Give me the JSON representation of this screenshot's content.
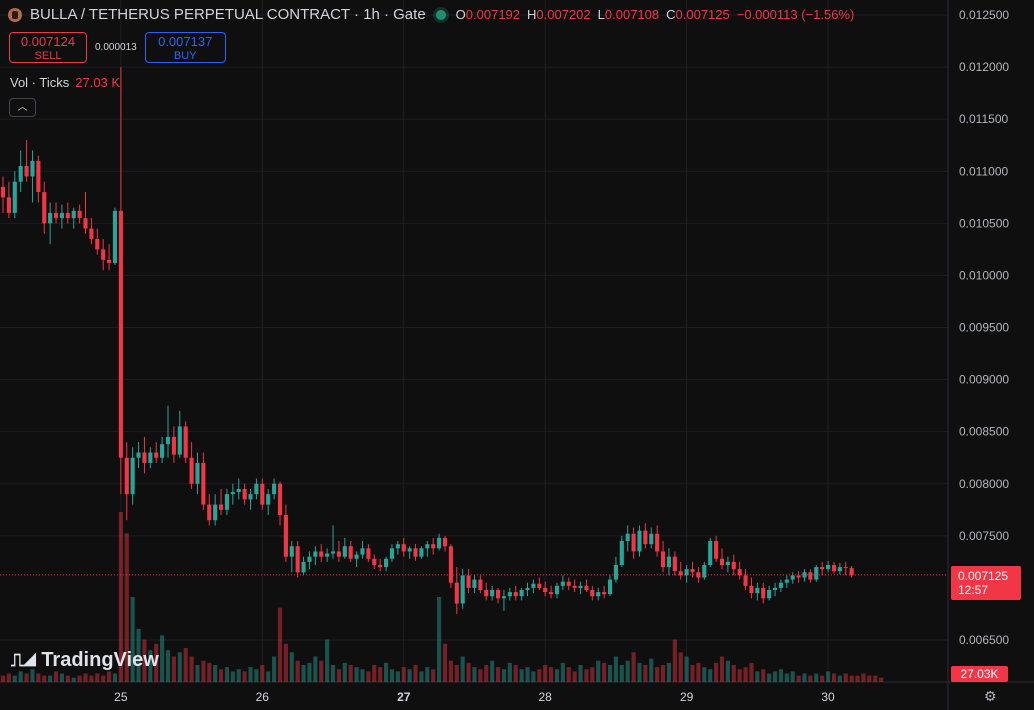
{
  "header": {
    "title": "BULLA / TETHERUS PERPETUAL CONTRACT · 1h · Gate",
    "ohlc": [
      {
        "k": "O",
        "v": "0.007192"
      },
      {
        "k": "H",
        "v": "0.007202"
      },
      {
        "k": "L",
        "v": "0.007108"
      },
      {
        "k": "C",
        "v": "0.007125"
      }
    ],
    "change": "−0.000113 (−1.56%)"
  },
  "trade": {
    "sell_price": "0.007124",
    "sell_label": "SELL",
    "spread": "0.000013",
    "buy_price": "0.007137",
    "buy_label": "BUY"
  },
  "volume": {
    "label": "Vol · Ticks",
    "value": "27.03 K"
  },
  "logo": {
    "text": "TradingView",
    "icon": "tradingview-logo-icon"
  },
  "last_price": {
    "price": "0.007125",
    "countdown": "12:57"
  },
  "last_volume": "27.03K",
  "colors": {
    "up": "#26a69a",
    "down": "#f23645",
    "background": "#0f0f0f"
  },
  "chart_data": {
    "type": "candlestick",
    "interval": "1h",
    "y_axis_side": "right",
    "y_ticks": [
      "0.012500",
      "0.012000",
      "0.011500",
      "0.011000",
      "0.010500",
      "0.010000",
      "0.009500",
      "0.009000",
      "0.008500",
      "0.008000",
      "0.007500",
      "0.006500"
    ],
    "ylim": [
      0.0062,
      0.0126
    ],
    "x_ticks": [
      {
        "label": "25",
        "t": 20,
        "bold": false
      },
      {
        "label": "26",
        "t": 44,
        "bold": false
      },
      {
        "label": "27",
        "t": 68,
        "bold": true
      },
      {
        "label": "28",
        "t": 92,
        "bold": false
      },
      {
        "label": "29",
        "t": 116,
        "bold": false
      },
      {
        "label": "30",
        "t": 140,
        "bold": false
      }
    ],
    "t_range": [
      0,
      150
    ],
    "candles": [
      [
        0.01085,
        0.01095,
        0.0106,
        0.01075
      ],
      [
        0.01075,
        0.0109,
        0.01055,
        0.0106
      ],
      [
        0.0106,
        0.011,
        0.01055,
        0.0109
      ],
      [
        0.0109,
        0.0112,
        0.0108,
        0.01105
      ],
      [
        0.01105,
        0.0113,
        0.0109,
        0.01095
      ],
      [
        0.01095,
        0.0112,
        0.0107,
        0.0111
      ],
      [
        0.0111,
        0.01115,
        0.0107,
        0.0108
      ],
      [
        0.0108,
        0.0109,
        0.0104,
        0.0105
      ],
      [
        0.0105,
        0.0107,
        0.0103,
        0.0106
      ],
      [
        0.0106,
        0.0107,
        0.0105,
        0.01055
      ],
      [
        0.01055,
        0.01068,
        0.01045,
        0.0106
      ],
      [
        0.0106,
        0.0107,
        0.0105,
        0.01055
      ],
      [
        0.01055,
        0.01065,
        0.01045,
        0.01062
      ],
      [
        0.01062,
        0.01068,
        0.0105,
        0.01055
      ],
      [
        0.01055,
        0.0108,
        0.0104,
        0.01045
      ],
      [
        0.01045,
        0.01055,
        0.0103,
        0.01035
      ],
      [
        0.01035,
        0.01045,
        0.0102,
        0.01025
      ],
      [
        0.01025,
        0.01035,
        0.01005,
        0.01015
      ],
      [
        0.01015,
        0.0103,
        0.01005,
        0.01012
      ],
      [
        0.01012,
        0.01065,
        0.0101,
        0.01062
      ],
      [
        0.01062,
        0.012,
        0.0079,
        0.00825
      ],
      [
        0.00825,
        0.0084,
        0.00765,
        0.0079
      ],
      [
        0.0079,
        0.00835,
        0.0078,
        0.00825
      ],
      [
        0.00825,
        0.0084,
        0.00815,
        0.0083
      ],
      [
        0.0083,
        0.00845,
        0.0081,
        0.0082
      ],
      [
        0.0082,
        0.00835,
        0.00815,
        0.0083
      ],
      [
        0.0083,
        0.0084,
        0.0082,
        0.00825
      ],
      [
        0.00825,
        0.00845,
        0.0082,
        0.00838
      ],
      [
        0.00838,
        0.00875,
        0.00825,
        0.00845
      ],
      [
        0.00845,
        0.00855,
        0.0082,
        0.00828
      ],
      [
        0.00828,
        0.0087,
        0.00825,
        0.00855
      ],
      [
        0.00855,
        0.0086,
        0.0082,
        0.00825
      ],
      [
        0.00825,
        0.0084,
        0.00795,
        0.008
      ],
      [
        0.008,
        0.0083,
        0.0079,
        0.0082
      ],
      [
        0.0082,
        0.0083,
        0.00775,
        0.0078
      ],
      [
        0.0078,
        0.0079,
        0.0076,
        0.00765
      ],
      [
        0.00765,
        0.0079,
        0.0076,
        0.0078
      ],
      [
        0.0078,
        0.00795,
        0.0077,
        0.00775
      ],
      [
        0.00775,
        0.00795,
        0.0077,
        0.0079
      ],
      [
        0.0079,
        0.008,
        0.0078,
        0.00792
      ],
      [
        0.00792,
        0.00805,
        0.00785,
        0.00795
      ],
      [
        0.00795,
        0.008,
        0.0078,
        0.00785
      ],
      [
        0.00785,
        0.00795,
        0.00775,
        0.0079
      ],
      [
        0.0079,
        0.00805,
        0.00785,
        0.008
      ],
      [
        0.008,
        0.00805,
        0.00775,
        0.0078
      ],
      [
        0.0078,
        0.00795,
        0.0077,
        0.0079
      ],
      [
        0.0079,
        0.00805,
        0.00785,
        0.008
      ],
      [
        0.008,
        0.00802,
        0.0076,
        0.0077
      ],
      [
        0.0077,
        0.0078,
        0.00725,
        0.0073
      ],
      [
        0.0073,
        0.00745,
        0.00715,
        0.0074
      ],
      [
        0.0074,
        0.00745,
        0.0071,
        0.00715
      ],
      [
        0.00715,
        0.0073,
        0.00712,
        0.00725
      ],
      [
        0.00725,
        0.00735,
        0.00718,
        0.0073
      ],
      [
        0.0073,
        0.0074,
        0.00722,
        0.00735
      ],
      [
        0.00735,
        0.00742,
        0.00725,
        0.0073
      ],
      [
        0.0073,
        0.00738,
        0.00725,
        0.00733
      ],
      [
        0.00733,
        0.0076,
        0.00728,
        0.00735
      ],
      [
        0.00735,
        0.00745,
        0.00725,
        0.0073
      ],
      [
        0.0073,
        0.00748,
        0.00728,
        0.0074
      ],
      [
        0.0074,
        0.00745,
        0.00725,
        0.00728
      ],
      [
        0.00728,
        0.00735,
        0.0072,
        0.00732
      ],
      [
        0.00732,
        0.00745,
        0.00728,
        0.00738
      ],
      [
        0.00738,
        0.00742,
        0.00725,
        0.00728
      ],
      [
        0.00728,
        0.00732,
        0.00718,
        0.00722
      ],
      [
        0.00722,
        0.00728,
        0.00716,
        0.0072
      ],
      [
        0.0072,
        0.0073,
        0.00716,
        0.00728
      ],
      [
        0.00728,
        0.00742,
        0.00725,
        0.00738
      ],
      [
        0.00738,
        0.00745,
        0.00732,
        0.00742
      ],
      [
        0.00742,
        0.00748,
        0.0073,
        0.00735
      ],
      [
        0.00735,
        0.0074,
        0.00728,
        0.00738
      ],
      [
        0.00738,
        0.00742,
        0.00726,
        0.0073
      ],
      [
        0.0073,
        0.0074,
        0.00728,
        0.00738
      ],
      [
        0.00738,
        0.00745,
        0.0073,
        0.00742
      ],
      [
        0.00742,
        0.00748,
        0.00732,
        0.00738
      ],
      [
        0.00738,
        0.00752,
        0.00736,
        0.00748
      ],
      [
        0.00748,
        0.0075,
        0.00735,
        0.0074
      ],
      [
        0.0074,
        0.00742,
        0.007,
        0.00705
      ],
      [
        0.00705,
        0.0072,
        0.00675,
        0.00685
      ],
      [
        0.00685,
        0.00718,
        0.0068,
        0.00712
      ],
      [
        0.00712,
        0.00718,
        0.00695,
        0.007
      ],
      [
        0.007,
        0.00712,
        0.00695,
        0.00708
      ],
      [
        0.00708,
        0.00712,
        0.00695,
        0.00698
      ],
      [
        0.00698,
        0.00705,
        0.00688,
        0.00692
      ],
      [
        0.00692,
        0.00702,
        0.00688,
        0.00698
      ],
      [
        0.00698,
        0.007,
        0.00685,
        0.0069
      ],
      [
        0.0069,
        0.00698,
        0.00678,
        0.00692
      ],
      [
        0.00692,
        0.007,
        0.00688,
        0.00696
      ],
      [
        0.00696,
        0.00702,
        0.00688,
        0.00692
      ],
      [
        0.00692,
        0.007,
        0.00688,
        0.00698
      ],
      [
        0.00698,
        0.00705,
        0.00692,
        0.007
      ],
      [
        0.007,
        0.00708,
        0.00695,
        0.00704
      ],
      [
        0.00704,
        0.0071,
        0.00698,
        0.007
      ],
      [
        0.007,
        0.00706,
        0.00692,
        0.00696
      ],
      [
        0.00696,
        0.00702,
        0.0069,
        0.00694
      ],
      [
        0.00694,
        0.00705,
        0.0069,
        0.00702
      ],
      [
        0.00702,
        0.00712,
        0.00698,
        0.00706
      ],
      [
        0.00706,
        0.0071,
        0.00698,
        0.00702
      ],
      [
        0.00702,
        0.00708,
        0.00696,
        0.007
      ],
      [
        0.007,
        0.00706,
        0.00694,
        0.00702
      ],
      [
        0.00702,
        0.00708,
        0.00696,
        0.00698
      ],
      [
        0.00698,
        0.00702,
        0.00688,
        0.00692
      ],
      [
        0.00692,
        0.007,
        0.00688,
        0.00696
      ],
      [
        0.00696,
        0.00702,
        0.0069,
        0.00694
      ],
      [
        0.00694,
        0.00712,
        0.00692,
        0.00708
      ],
      [
        0.00708,
        0.0073,
        0.00705,
        0.00722
      ],
      [
        0.00722,
        0.0075,
        0.0072,
        0.00745
      ],
      [
        0.00745,
        0.0076,
        0.00735,
        0.00752
      ],
      [
        0.00752,
        0.00758,
        0.00728,
        0.00735
      ],
      [
        0.00735,
        0.0076,
        0.0073,
        0.00755
      ],
      [
        0.00755,
        0.00762,
        0.00738,
        0.00742
      ],
      [
        0.00742,
        0.00758,
        0.00738,
        0.00752
      ],
      [
        0.00752,
        0.0076,
        0.0073,
        0.00735
      ],
      [
        0.00735,
        0.00745,
        0.00715,
        0.0072
      ],
      [
        0.0072,
        0.00738,
        0.00712,
        0.0073
      ],
      [
        0.0073,
        0.00735,
        0.00712,
        0.00716
      ],
      [
        0.00716,
        0.00725,
        0.00708,
        0.00712
      ],
      [
        0.00712,
        0.00722,
        0.00705,
        0.00718
      ],
      [
        0.00718,
        0.00725,
        0.0071,
        0.00715
      ],
      [
        0.00715,
        0.0072,
        0.00705,
        0.0071
      ],
      [
        0.0071,
        0.00725,
        0.00708,
        0.00722
      ],
      [
        0.00722,
        0.00748,
        0.0072,
        0.00745
      ],
      [
        0.00745,
        0.0075,
        0.00725,
        0.00728
      ],
      [
        0.00728,
        0.00738,
        0.00718,
        0.00722
      ],
      [
        0.00722,
        0.0073,
        0.00715,
        0.00725
      ],
      [
        0.00725,
        0.00732,
        0.00712,
        0.00718
      ],
      [
        0.00718,
        0.00725,
        0.00708,
        0.00712
      ],
      [
        0.00712,
        0.00718,
        0.00698,
        0.00702
      ],
      [
        0.00702,
        0.0071,
        0.0069,
        0.00695
      ],
      [
        0.00695,
        0.00705,
        0.00688,
        0.007
      ],
      [
        0.007,
        0.00705,
        0.00685,
        0.0069
      ],
      [
        0.0069,
        0.00702,
        0.00688,
        0.00698
      ],
      [
        0.00698,
        0.00705,
        0.00692,
        0.007
      ],
      [
        0.007,
        0.00708,
        0.00696,
        0.00705
      ],
      [
        0.00705,
        0.00712,
        0.007,
        0.00708
      ],
      [
        0.00708,
        0.00715,
        0.00704,
        0.00712
      ],
      [
        0.00712,
        0.00716,
        0.00705,
        0.0071
      ],
      [
        0.0071,
        0.00718,
        0.00706,
        0.00715
      ],
      [
        0.00715,
        0.00718,
        0.00705,
        0.00708
      ],
      [
        0.00708,
        0.00722,
        0.00706,
        0.0072
      ],
      [
        0.0072,
        0.00725,
        0.00712,
        0.00718
      ],
      [
        0.00718,
        0.00726,
        0.00715,
        0.00722
      ],
      [
        0.00722,
        0.00725,
        0.00714,
        0.00716
      ],
      [
        0.00716,
        0.00724,
        0.00713,
        0.0072
      ],
      [
        0.0072,
        0.00725,
        0.00712,
        0.00719
      ],
      [
        0.00719,
        0.00721,
        0.0071,
        0.00712
      ]
    ],
    "volumes": [
      3,
      4,
      3,
      5,
      4,
      6,
      4,
      3,
      3,
      5,
      4,
      3,
      2,
      3,
      4,
      3,
      4,
      3,
      5,
      4,
      80,
      70,
      40,
      25,
      20,
      15,
      18,
      22,
      15,
      12,
      14,
      16,
      12,
      8,
      10,
      9,
      8,
      6,
      7,
      5,
      6,
      5,
      7,
      6,
      8,
      5,
      12,
      35,
      18,
      14,
      10,
      8,
      9,
      12,
      10,
      20,
      8,
      6,
      9,
      8,
      7,
      6,
      5,
      8,
      7,
      9,
      6,
      5,
      7,
      6,
      8,
      5,
      7,
      6,
      40,
      18,
      10,
      8,
      12,
      9,
      7,
      6,
      8,
      10,
      7,
      6,
      9,
      8,
      6,
      7,
      5,
      6,
      8,
      7,
      6,
      9,
      7,
      5,
      8,
      6,
      7,
      10,
      9,
      8,
      12,
      8,
      10,
      14,
      9,
      8,
      11,
      7,
      8,
      9,
      20,
      14,
      12,
      8,
      9,
      7,
      6,
      9,
      12,
      10,
      8,
      6,
      7,
      9,
      5,
      6,
      4,
      5,
      6,
      4,
      5,
      3,
      4,
      3,
      4,
      3,
      5,
      4,
      3,
      4,
      3,
      3,
      4,
      3,
      3,
      2
    ]
  }
}
